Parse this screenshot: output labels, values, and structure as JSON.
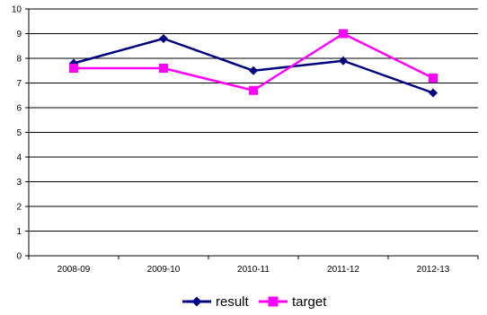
{
  "chart_data": {
    "type": "line",
    "title": "",
    "xlabel": "",
    "ylabel": "",
    "categories": [
      "2008-09",
      "2009-10",
      "2010-11",
      "2011-12",
      "2012-13"
    ],
    "ylim": [
      0,
      10
    ],
    "yticks": [
      "0",
      "1",
      "2",
      "3",
      "4",
      "5",
      "6",
      "7",
      "8",
      "9",
      "10"
    ],
    "grid": "horizontal",
    "legend_position": "bottom",
    "series": [
      {
        "name": "result",
        "values": [
          7.8,
          8.8,
          7.5,
          7.9,
          6.6
        ],
        "color": "#000080",
        "marker": "diamond"
      },
      {
        "name": "target",
        "values": [
          7.6,
          7.6,
          6.7,
          9.0,
          7.2
        ],
        "color": "#ff00ff",
        "marker": "square"
      }
    ]
  }
}
